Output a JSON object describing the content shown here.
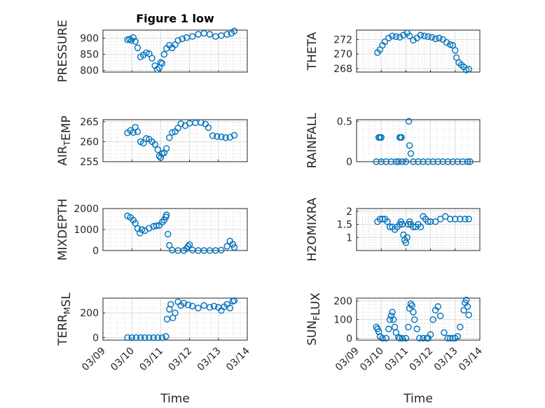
{
  "figure": {
    "title": "Figure 1 low",
    "xlabel": "Time",
    "x_ticks": [
      "03/09",
      "03/10",
      "03/11",
      "03/12",
      "03/13",
      "03/14"
    ]
  },
  "chart_data": [
    {
      "type": "scatter",
      "title": "Figure 1 low",
      "xlabel": "",
      "ylabel": "PRESSURE",
      "ylim": [
        795,
        925
      ],
      "yticks": [
        800,
        850,
        900
      ],
      "yticklabels": [
        "800",
        "850",
        "900"
      ],
      "grid": "on",
      "minor_grid": "on",
      "marker": "circle",
      "color": "#0072bd",
      "x": [
        9.85,
        9.92,
        9.98,
        10.05,
        10.12,
        10.2,
        10.3,
        10.4,
        10.5,
        10.6,
        10.7,
        10.8,
        10.88,
        10.95,
        11.0,
        11.05,
        11.12,
        11.2,
        11.3,
        11.4,
        11.5,
        11.6,
        11.75,
        11.9,
        12.1,
        12.3,
        12.5,
        12.7,
        12.9,
        13.1,
        13.3,
        13.45,
        13.55
      ],
      "y": [
        895,
        897,
        893,
        902,
        890,
        870,
        842,
        848,
        855,
        852,
        838,
        815,
        803,
        808,
        825,
        822,
        850,
        868,
        878,
        870,
        880,
        893,
        898,
        902,
        905,
        912,
        915,
        912,
        905,
        908,
        912,
        915,
        922
      ]
    },
    {
      "type": "scatter",
      "title": "",
      "xlabel": "",
      "ylabel": "THETA",
      "ylim": [
        267.5,
        273.3
      ],
      "yticks": [
        268,
        270,
        272
      ],
      "yticklabels": [
        "268",
        "270",
        "272"
      ],
      "grid": "on",
      "minor_grid": "on",
      "marker": "circle",
      "color": "#0072bd",
      "x": [
        9.85,
        9.95,
        10.05,
        10.15,
        10.3,
        10.45,
        10.6,
        10.75,
        10.9,
        11.05,
        11.15,
        11.3,
        11.45,
        11.6,
        11.75,
        11.9,
        12.05,
        12.2,
        12.35,
        12.5,
        12.65,
        12.8,
        12.9,
        13.0,
        13.05,
        13.15,
        13.25,
        13.35,
        13.45,
        13.55
      ],
      "y": [
        270.2,
        270.6,
        271.2,
        271.7,
        272.2,
        272.5,
        272.4,
        272.3,
        272.6,
        272.9,
        272.5,
        271.9,
        272.2,
        272.6,
        272.5,
        272.4,
        272.3,
        272.1,
        272.2,
        272.0,
        271.6,
        271.3,
        271.2,
        270.5,
        269.5,
        268.8,
        268.5,
        268.2,
        267.8,
        267.9
      ]
    },
    {
      "type": "scatter",
      "title": "",
      "xlabel": "",
      "ylabel": "AIR_TEMP",
      "ylim": [
        255,
        265.5
      ],
      "yticks": [
        255,
        260,
        265
      ],
      "yticklabels": [
        "255",
        "260",
        "265"
      ],
      "grid": "on",
      "minor_grid": "on",
      "marker": "circle",
      "color": "#0072bd",
      "x": [
        9.85,
        9.95,
        10.05,
        10.12,
        10.2,
        10.3,
        10.4,
        10.5,
        10.6,
        10.7,
        10.8,
        10.9,
        10.95,
        11.0,
        11.05,
        11.12,
        11.2,
        11.3,
        11.4,
        11.5,
        11.6,
        11.7,
        11.85,
        12.0,
        12.2,
        12.4,
        12.55,
        12.65,
        12.8,
        12.95,
        13.1,
        13.25,
        13.4,
        13.55
      ],
      "y": [
        262.2,
        262.8,
        262.3,
        263.6,
        262.5,
        260.0,
        259.6,
        260.8,
        260.6,
        260.0,
        259.3,
        258.0,
        256.4,
        256.0,
        257.0,
        257.2,
        258.3,
        261.0,
        262.3,
        262.5,
        263.4,
        264.5,
        264.0,
        264.6,
        264.7,
        264.8,
        264.4,
        263.5,
        261.5,
        261.3,
        261.2,
        261.0,
        261.1,
        261.6
      ]
    },
    {
      "type": "scatter",
      "title": "",
      "xlabel": "",
      "ylabel": "RAINFALL",
      "ylim": [
        0,
        0.52
      ],
      "yticks": [
        0,
        0.5
      ],
      "yticklabels": [
        "0",
        "0.5"
      ],
      "grid": "on",
      "minor_grid": "on",
      "marker": "circle",
      "color": "#0072bd",
      "x": [
        9.8,
        9.9,
        9.95,
        10.0,
        10.0,
        10.2,
        10.4,
        10.6,
        10.7,
        10.75,
        10.8,
        10.82,
        10.85,
        11.0,
        11.12,
        11.15,
        11.2,
        11.3,
        11.5,
        11.7,
        11.9,
        12.1,
        12.3,
        12.5,
        12.7,
        12.9,
        13.1,
        13.3,
        13.5,
        13.6
      ],
      "y": [
        0,
        0.3,
        0.3,
        0.3,
        0,
        0,
        0,
        0,
        0,
        0.3,
        0.3,
        0.3,
        0,
        0,
        0.5,
        0.2,
        0.1,
        0,
        0,
        0,
        0,
        0,
        0,
        0,
        0,
        0,
        0,
        0,
        0,
        0
      ]
    },
    {
      "type": "scatter",
      "title": "",
      "xlabel": "",
      "ylabel": "MIXDEPTH",
      "ylim": [
        0,
        2000
      ],
      "yticks": [
        0,
        1000,
        2000
      ],
      "yticklabels": [
        "0",
        "1000",
        "2000"
      ],
      "grid": "on",
      "minor_grid": "on",
      "marker": "circle",
      "color": "#0072bd",
      "x": [
        9.85,
        9.95,
        10.05,
        10.12,
        10.2,
        10.28,
        10.35,
        10.45,
        10.6,
        10.75,
        10.85,
        10.95,
        11.05,
        11.12,
        11.18,
        11.2,
        11.25,
        11.3,
        11.4,
        11.6,
        11.8,
        11.9,
        11.95,
        12.0,
        12.1,
        12.3,
        12.5,
        12.7,
        12.9,
        13.1,
        13.3,
        13.4,
        13.5,
        13.55
      ],
      "y": [
        1650,
        1580,
        1450,
        1300,
        1050,
        830,
        1000,
        950,
        1060,
        1150,
        1180,
        1200,
        1350,
        1450,
        1600,
        1700,
        780,
        250,
        20,
        0,
        0,
        100,
        200,
        280,
        30,
        0,
        0,
        0,
        0,
        20,
        200,
        450,
        300,
        150
      ]
    },
    {
      "type": "scatter",
      "title": "",
      "xlabel": "",
      "ylabel": "H2OMIXRA",
      "ylim": [
        0.5,
        2.1
      ],
      "yticks": [
        1,
        1.5,
        2
      ],
      "yticklabels": [
        "1",
        "1.5",
        "2"
      ],
      "grid": "on",
      "minor_grid": "on",
      "marker": "circle",
      "color": "#0072bd",
      "x": [
        9.85,
        9.95,
        10.05,
        10.15,
        10.25,
        10.35,
        10.45,
        10.55,
        10.65,
        10.75,
        10.8,
        10.85,
        10.9,
        10.95,
        11.0,
        11.05,
        11.1,
        11.15,
        11.2,
        11.3,
        11.4,
        11.5,
        11.6,
        11.7,
        11.8,
        11.9,
        12.0,
        12.2,
        12.4,
        12.6,
        12.8,
        13.0,
        13.2,
        13.4,
        13.55
      ],
      "y": [
        1.6,
        1.7,
        1.7,
        1.7,
        1.6,
        1.4,
        1.4,
        1.3,
        1.4,
        1.5,
        1.6,
        1.5,
        1.1,
        0.9,
        0.8,
        1.0,
        1.5,
        1.6,
        1.5,
        1.4,
        1.4,
        1.5,
        1.4,
        1.8,
        1.7,
        1.6,
        1.6,
        1.6,
        1.7,
        1.8,
        1.7,
        1.7,
        1.7,
        1.7,
        1.7
      ]
    },
    {
      "type": "scatter",
      "title": "",
      "xlabel": "",
      "ylabel": "TERR_MSL",
      "ylim": [
        -20,
        320
      ],
      "yticks": [
        0,
        200
      ],
      "yticklabels": [
        "0",
        "200"
      ],
      "grid": "on",
      "minor_grid": "on",
      "marker": "circle",
      "color": "#0072bd",
      "x": [
        9.85,
        10.0,
        10.15,
        10.3,
        10.45,
        10.6,
        10.75,
        10.9,
        11.05,
        11.18,
        11.22,
        11.3,
        11.35,
        11.42,
        11.5,
        11.6,
        11.7,
        11.8,
        11.95,
        12.1,
        12.3,
        12.5,
        12.7,
        12.85,
        13.0,
        13.1,
        13.2,
        13.3,
        13.4,
        13.5,
        13.55
      ],
      "y": [
        0,
        0,
        0,
        0,
        0,
        0,
        0,
        0,
        0,
        10,
        150,
        230,
        270,
        160,
        200,
        290,
        260,
        280,
        265,
        255,
        240,
        260,
        245,
        255,
        245,
        220,
        250,
        270,
        240,
        295,
        300
      ]
    },
    {
      "type": "scatter",
      "title": "",
      "xlabel": "",
      "ylabel": "SUN_FLUX",
      "ylim": [
        -10,
        215
      ],
      "yticks": [
        0,
        100,
        200
      ],
      "yticklabels": [
        "0",
        "100",
        "200"
      ],
      "grid": "on",
      "minor_grid": "on",
      "marker": "circle",
      "color": "#0072bd",
      "x": [
        9.8,
        9.85,
        9.9,
        9.95,
        10.05,
        10.2,
        10.3,
        10.35,
        10.4,
        10.45,
        10.5,
        10.55,
        10.6,
        10.7,
        10.75,
        10.85,
        11.0,
        11.1,
        11.15,
        11.2,
        11.25,
        11.3,
        11.35,
        11.45,
        11.55,
        11.7,
        11.85,
        11.9,
        12.0,
        12.1,
        12.2,
        12.3,
        12.4,
        12.55,
        12.7,
        12.8,
        12.9,
        13.0,
        13.1,
        13.2,
        13.35,
        13.4,
        13.45,
        13.5,
        13.55
      ],
      "y": [
        60,
        50,
        35,
        10,
        0,
        0,
        50,
        100,
        120,
        140,
        100,
        60,
        30,
        5,
        0,
        0,
        0,
        60,
        160,
        185,
        175,
        140,
        100,
        50,
        0,
        0,
        0,
        0,
        20,
        100,
        150,
        170,
        120,
        30,
        0,
        0,
        0,
        0,
        10,
        60,
        150,
        190,
        205,
        170,
        125
      ]
    }
  ]
}
